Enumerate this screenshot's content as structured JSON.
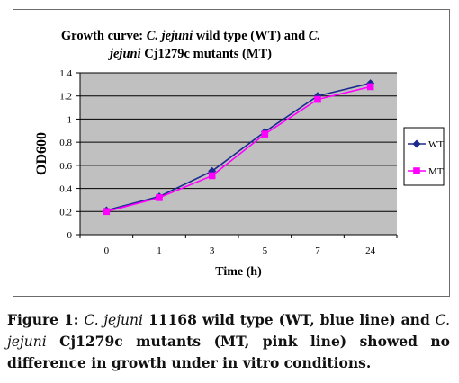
{
  "chart_data": {
    "type": "line",
    "title_parts": [
      {
        "text": "Growth  curve: ",
        "italic": false
      },
      {
        "text": "C. jejuni",
        "italic": true
      },
      {
        "text": " wild type (WT) and ",
        "italic": false
      },
      {
        "text": "C.",
        "italic": true
      }
    ],
    "title_line2_parts": [
      {
        "text": "jejuni",
        "italic": true
      },
      {
        "text": " Cj1279c mutants (MT)",
        "italic": false
      }
    ],
    "xlabel": "Time (h)",
    "ylabel": "OD600",
    "categories": [
      "0",
      "1",
      "3",
      "5",
      "7",
      "24"
    ],
    "ylim": [
      0,
      1.4
    ],
    "yticks": [
      "0",
      "0.2",
      "0.4",
      "0.6",
      "0.8",
      "1",
      "1.2",
      "1.4"
    ],
    "grid": true,
    "legend_position": "right",
    "series": [
      {
        "name": "WT",
        "color": "#1c2a8f",
        "marker": "diamond",
        "values": [
          0.21,
          0.33,
          0.55,
          0.89,
          1.2,
          1.31
        ]
      },
      {
        "name": "MT",
        "color": "#ff00ff",
        "marker": "square",
        "values": [
          0.2,
          0.32,
          0.51,
          0.87,
          1.17,
          1.28
        ]
      }
    ]
  },
  "caption": {
    "parts": [
      {
        "text": "Figure 1: ",
        "italic": false
      },
      {
        "text": "C. jejuni",
        "italic": true
      },
      {
        "text": " 11168 wild type (WT, blue line) and ",
        "italic": false
      },
      {
        "text": "C. jejuni",
        "italic": true
      },
      {
        "text": " Cj1279c mutants (MT, pink line) showed no difference in growth under in vitro conditions.",
        "italic": false
      }
    ]
  }
}
